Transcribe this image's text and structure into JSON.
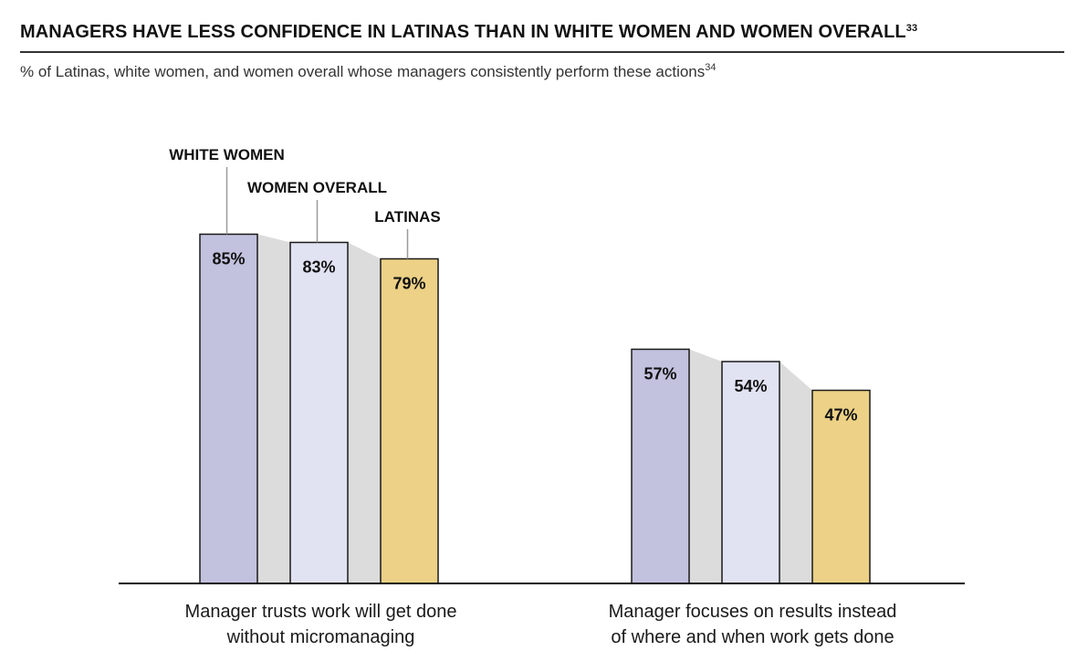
{
  "header": {
    "title": "MANAGERS HAVE LESS CONFIDENCE IN LATINAS THAN IN WHITE WOMEN AND WOMEN OVERALL",
    "title_footnote": "33",
    "subtitle": "% of Latinas, white women, and women overall whose managers consistently perform these actions",
    "subtitle_footnote": "34"
  },
  "colors": {
    "white_women": "#c2c1de",
    "women_overall": "#e1e2f2",
    "latinas": "#ecd186",
    "connector": "#dcdcdc",
    "bar_stroke": "#1a1a1a"
  },
  "chart_data": {
    "type": "bar",
    "title": "MANAGERS HAVE LESS CONFIDENCE IN LATINAS THAN IN WHITE WOMEN AND WOMEN OVERALL",
    "categories": [
      [
        "Manager trusts work will get done",
        "without micromanaging"
      ],
      [
        "Manager focuses on results instead",
        "of where and when work gets done"
      ]
    ],
    "series": [
      {
        "name": "WHITE WOMEN",
        "values": [
          85,
          57
        ],
        "labels": [
          "85%",
          "57%"
        ]
      },
      {
        "name": "WOMEN OVERALL",
        "values": [
          83,
          54
        ],
        "labels": [
          "83%",
          "54%"
        ]
      },
      {
        "name": "LATINAS",
        "values": [
          79,
          47
        ],
        "labels": [
          "79%",
          "47%"
        ]
      }
    ],
    "ylim": [
      0,
      100
    ],
    "xlabel": "",
    "ylabel": "",
    "grid": false,
    "legend": "callouts above first group"
  }
}
